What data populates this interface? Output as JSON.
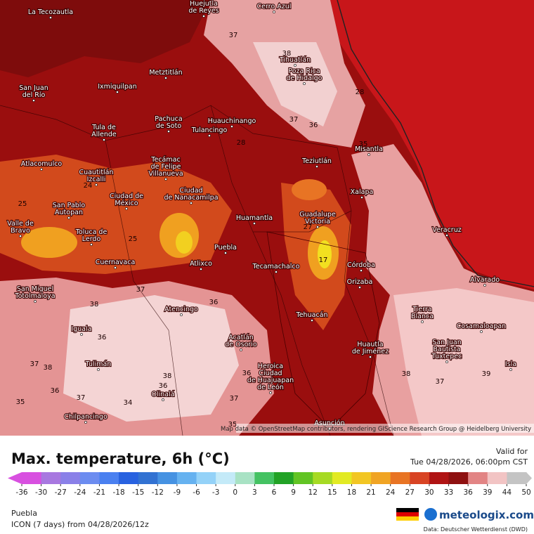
{
  "header": {
    "title": "Max. temperature, 6h (°C)",
    "valid_label": "Valid for",
    "valid_time": "Tue 04/28/2026, 06:00pm CST"
  },
  "legend": {
    "ticks": [
      -36,
      -30,
      -27,
      -24,
      -21,
      -18,
      -15,
      -12,
      -9,
      -6,
      -3,
      0,
      3,
      6,
      9,
      12,
      15,
      18,
      21,
      24,
      27,
      30,
      33,
      36,
      39,
      44,
      50
    ],
    "colors": [
      "#d850e0",
      "#a878e0",
      "#8a80e8",
      "#6c8cf0",
      "#4a80f0",
      "#2862e0",
      "#3272d2",
      "#4692e2",
      "#66b2f0",
      "#94d2f8",
      "#c4eaf8",
      "#a8e2c4",
      "#44c262",
      "#22a226",
      "#62c424",
      "#a6da24",
      "#e2ea24",
      "#f2c624",
      "#f0a424",
      "#e87424",
      "#d84424",
      "#b01414",
      "#8e1010",
      "#e28484",
      "#f2c4c4",
      "#c4c4c4"
    ]
  },
  "map": {
    "attribution": "Map data © OpenStreetMap contributors, rendering GIScience Research Group @ Heidelberg University",
    "cities": [
      {
        "name": [
          "La Tecozautla"
        ]
      },
      {
        "name": [
          "Huejutla",
          "de Reyes"
        ]
      },
      {
        "name": [
          "Cerro Azul"
        ]
      },
      {
        "name": [
          "Tihuatlán"
        ]
      },
      {
        "name": [
          "Poza Rica",
          "de Hidalgo"
        ]
      },
      {
        "name": [
          "Metztitlán"
        ]
      },
      {
        "name": [
          "Ixmiquilpan"
        ]
      },
      {
        "name": [
          "San Juan",
          "del Río"
        ]
      },
      {
        "name": [
          "Pachuca",
          "de Soto"
        ]
      },
      {
        "name": [
          "Huauchinango"
        ]
      },
      {
        "name": [
          "Tulancingo"
        ]
      },
      {
        "name": [
          "Tula de",
          "Allende"
        ]
      },
      {
        "name": [
          "Misantla"
        ]
      },
      {
        "name": [
          "Teziutlán"
        ]
      },
      {
        "name": [
          "Tecámac",
          "de Felipe",
          "Villanueva"
        ]
      },
      {
        "name": [
          "Atlacomulco"
        ]
      },
      {
        "name": [
          "Cuautitlán",
          "Izcalli"
        ]
      },
      {
        "name": [
          "Ciudad de",
          "México"
        ]
      },
      {
        "name": [
          "Ciudad",
          "de Nanacamilpa"
        ]
      },
      {
        "name": [
          "Xalapa"
        ]
      },
      {
        "name": [
          "San Pablo",
          "Autopan"
        ]
      },
      {
        "name": [
          "Huamantla"
        ]
      },
      {
        "name": [
          "Guadalupe",
          "Victoria"
        ]
      },
      {
        "name": [
          "Valle de",
          "Bravo"
        ]
      },
      {
        "name": [
          "Toluca de",
          "Lerdo"
        ]
      },
      {
        "name": [
          "Veracruz"
        ]
      },
      {
        "name": [
          "Puebla"
        ]
      },
      {
        "name": [
          "Atlixco"
        ]
      },
      {
        "name": [
          "Tecamachalco"
        ]
      },
      {
        "name": [
          "Córdoba"
        ]
      },
      {
        "name": [
          "Cuernavaca"
        ]
      },
      {
        "name": [
          "Orizaba"
        ]
      },
      {
        "name": [
          "Alvarado"
        ]
      },
      {
        "name": [
          "San Miguel",
          "Totolmaloya"
        ]
      },
      {
        "name": [
          "Atencingo"
        ]
      },
      {
        "name": [
          "Tierra",
          "Blanca"
        ]
      },
      {
        "name": [
          "Tehuacán"
        ]
      },
      {
        "name": [
          "Cosamaloapan"
        ]
      },
      {
        "name": [
          "Iguala"
        ]
      },
      {
        "name": [
          "Acatlán",
          "de Osorio"
        ]
      },
      {
        "name": [
          "Huautla",
          "de Jiménez"
        ]
      },
      {
        "name": [
          "San Juan",
          "Bautista",
          "Tuxtepec"
        ]
      },
      {
        "name": [
          "Tulimán"
        ]
      },
      {
        "name": [
          "Heroica",
          "Ciudad",
          "de Huajuapan",
          "de León"
        ]
      },
      {
        "name": [
          "Olinalá"
        ]
      },
      {
        "name": [
          "Isla"
        ]
      },
      {
        "name": [
          "Chilpancingo"
        ]
      },
      {
        "name": [
          "Asunción"
        ]
      }
    ],
    "contour_labels": [
      37,
      38,
      28,
      37,
      36,
      28,
      35,
      24,
      25,
      27,
      17,
      25,
      37,
      38,
      36,
      36,
      38,
      36,
      37,
      38,
      36,
      37,
      34,
      37,
      38,
      37,
      39,
      35,
      35,
      36
    ]
  },
  "footer": {
    "location": "Puebla",
    "model": "ICON (7 days) from 04/28/2026/12z",
    "brand": "meteologix.com",
    "source": "Data: Deutscher Wetterdienst (DWD)"
  }
}
